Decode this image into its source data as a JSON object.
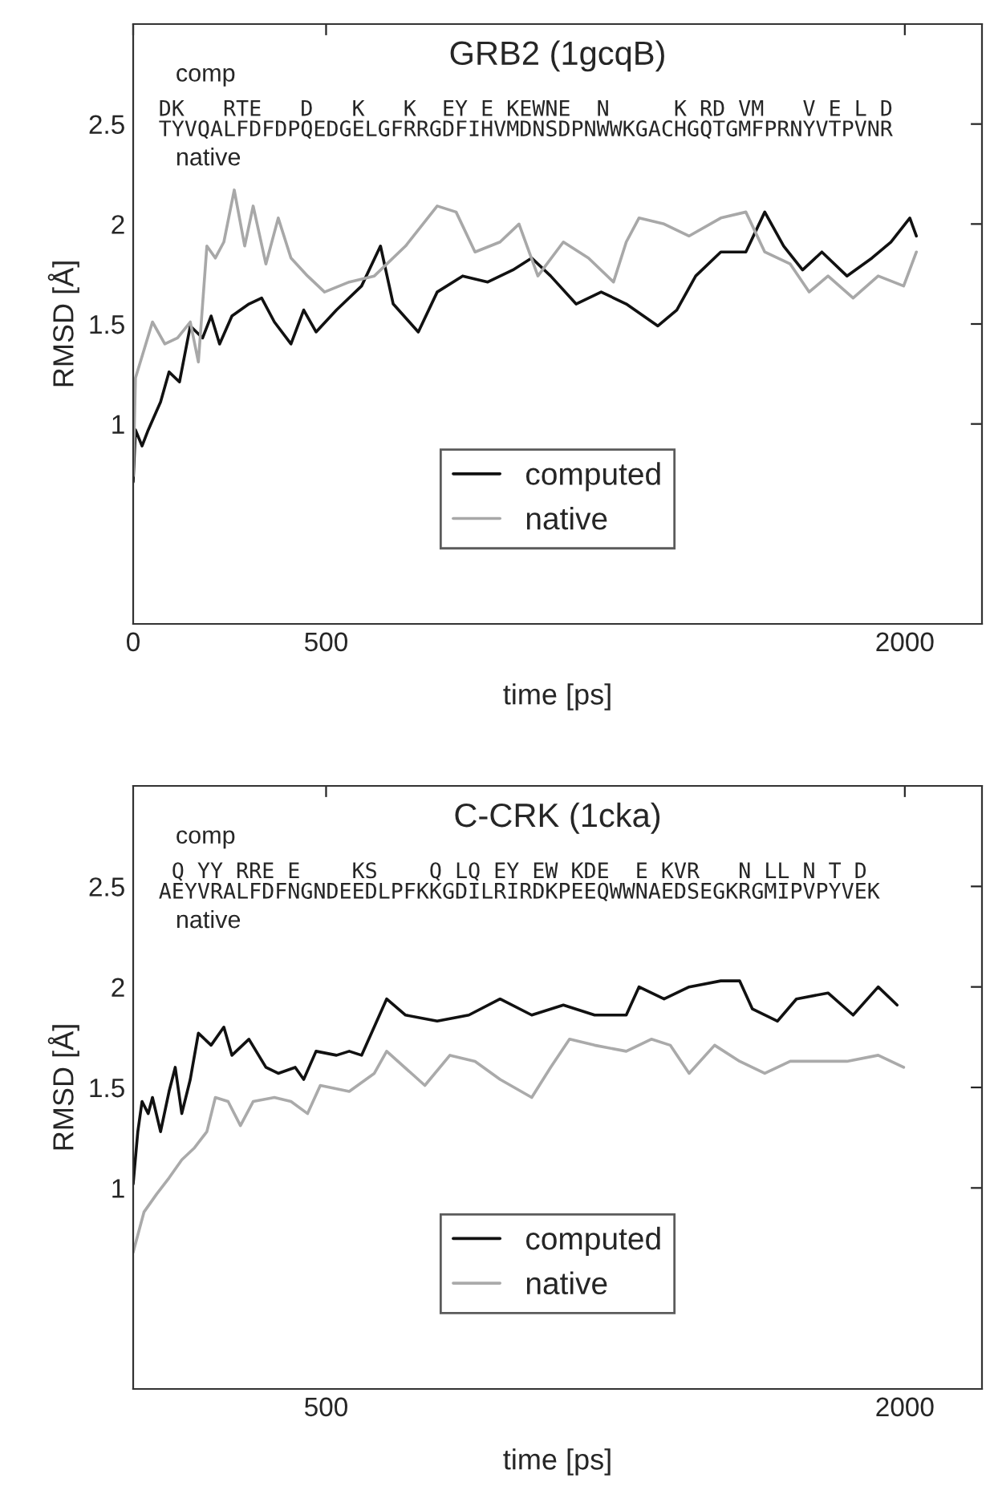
{
  "chart_data": [
    {
      "type": "line",
      "title": "GRB2 (1gcqB)",
      "xlabel": "time [ps]",
      "ylabel": "RMSD [Å]",
      "xlim": [
        0,
        2200
      ],
      "ylim": [
        0,
        3
      ],
      "xticks": [
        0,
        500,
        2000
      ],
      "yticks": [
        1,
        1.5,
        2,
        2.5
      ],
      "legend": "bottom",
      "annotations": [
        "comp",
        "DK   RTE   D   K   K  EY E KEWNE  N     K RD VM   V E L D",
        "TYVQALFDFDPQEDGELGFRRGDFIHVMDNSDPNWWKGACHGQTGMFPRNYVTPVNR",
        "native"
      ],
      "series": [
        {
          "name": "computed",
          "color": "#111111",
          "x": [
            0,
            6,
            23,
            39,
            71,
            93,
            120,
            148,
            180,
            202,
            224,
            256,
            300,
            333,
            366,
            409,
            442,
            474,
            527,
            592,
            641,
            674,
            739,
            788,
            854,
            919,
            984,
            1033,
            1082,
            1148,
            1213,
            1278,
            1360,
            1409,
            1458,
            1523,
            1588,
            1637,
            1686,
            1735,
            1785,
            1850,
            1915,
            1964,
            2013,
            2030
          ],
          "values": [
            0.71,
            0.97,
            0.89,
            0.97,
            1.11,
            1.26,
            1.21,
            1.49,
            1.43,
            1.54,
            1.4,
            1.54,
            1.6,
            1.63,
            1.51,
            1.4,
            1.57,
            1.46,
            1.57,
            1.69,
            1.89,
            1.6,
            1.46,
            1.66,
            1.74,
            1.71,
            1.77,
            1.83,
            1.74,
            1.6,
            1.66,
            1.6,
            1.49,
            1.57,
            1.74,
            1.86,
            1.86,
            2.06,
            1.89,
            1.77,
            1.86,
            1.74,
            1.83,
            1.91,
            2.03,
            1.94
          ]
        },
        {
          "name": "native",
          "color": "#a8a8a8",
          "x": [
            0,
            6,
            28,
            50,
            82,
            115,
            148,
            169,
            191,
            213,
            235,
            262,
            289,
            311,
            344,
            376,
            409,
            452,
            496,
            560,
            625,
            706,
            788,
            837,
            886,
            951,
            1000,
            1049,
            1115,
            1180,
            1245,
            1278,
            1311,
            1376,
            1441,
            1523,
            1588,
            1637,
            1703,
            1752,
            1801,
            1866,
            1931,
            1997,
            2030
          ],
          "values": [
            0.74,
            1.23,
            1.37,
            1.51,
            1.4,
            1.43,
            1.51,
            1.31,
            1.89,
            1.83,
            1.91,
            2.17,
            1.89,
            2.09,
            1.8,
            2.03,
            1.83,
            1.74,
            1.66,
            1.71,
            1.74,
            1.89,
            2.09,
            2.06,
            1.86,
            1.91,
            2.0,
            1.74,
            1.91,
            1.83,
            1.71,
            1.91,
            2.03,
            2.0,
            1.94,
            2.03,
            2.06,
            1.86,
            1.8,
            1.66,
            1.74,
            1.63,
            1.74,
            1.69,
            1.86
          ]
        }
      ]
    },
    {
      "type": "line",
      "title": "C-CRK (1cka)",
      "xlabel": "time [ps]",
      "ylabel": "RMSD [Å]",
      "xlim": [
        0,
        2200
      ],
      "ylim": [
        0,
        3
      ],
      "xticks": [
        500,
        2000
      ],
      "yticks": [
        1,
        1.5,
        2,
        2.5
      ],
      "legend": "bottom",
      "annotations": [
        "comp",
        " Q YY RRE E    KS    Q LQ EY EW KDE  E KVR   N LL N T D",
        "AEYVRALFDFNGNDEEDLPFKKGDILRIRDKPEEQWWNAEDSEGKRGMIPVPYVEK",
        "native"
      ],
      "series": [
        {
          "name": "computed",
          "color": "#111111",
          "x": [
            0,
            12,
            23,
            39,
            50,
            71,
            93,
            109,
            126,
            148,
            169,
            202,
            235,
            256,
            300,
            344,
            376,
            420,
            442,
            474,
            527,
            560,
            592,
            657,
            706,
            788,
            870,
            951,
            1033,
            1115,
            1196,
            1278,
            1311,
            1376,
            1441,
            1523,
            1572,
            1605,
            1670,
            1719,
            1801,
            1866,
            1931,
            1980
          ],
          "values": [
            1.02,
            1.28,
            1.43,
            1.37,
            1.45,
            1.28,
            1.48,
            1.6,
            1.37,
            1.54,
            1.77,
            1.71,
            1.8,
            1.66,
            1.74,
            1.6,
            1.57,
            1.6,
            1.54,
            1.68,
            1.66,
            1.68,
            1.66,
            1.94,
            1.86,
            1.83,
            1.86,
            1.94,
            1.86,
            1.91,
            1.86,
            1.86,
            2.0,
            1.94,
            2.0,
            2.03,
            2.03,
            1.89,
            1.83,
            1.94,
            1.97,
            1.86,
            2.0,
            1.91
          ]
        },
        {
          "name": "native",
          "color": "#aaaaaa",
          "x": [
            0,
            28,
            61,
            93,
            126,
            159,
            191,
            213,
            246,
            278,
            311,
            366,
            409,
            452,
            485,
            560,
            625,
            657,
            756,
            821,
            886,
            951,
            1033,
            1082,
            1131,
            1196,
            1278,
            1343,
            1392,
            1441,
            1507,
            1572,
            1637,
            1703,
            1768,
            1850,
            1931,
            1997
          ],
          "values": [
            0.68,
            0.88,
            0.97,
            1.05,
            1.14,
            1.2,
            1.28,
            1.45,
            1.43,
            1.31,
            1.43,
            1.45,
            1.43,
            1.37,
            1.51,
            1.48,
            1.57,
            1.68,
            1.51,
            1.66,
            1.63,
            1.54,
            1.45,
            1.6,
            1.74,
            1.71,
            1.68,
            1.74,
            1.71,
            1.57,
            1.71,
            1.63,
            1.57,
            1.63,
            1.63,
            1.63,
            1.66,
            1.6
          ]
        }
      ]
    }
  ]
}
